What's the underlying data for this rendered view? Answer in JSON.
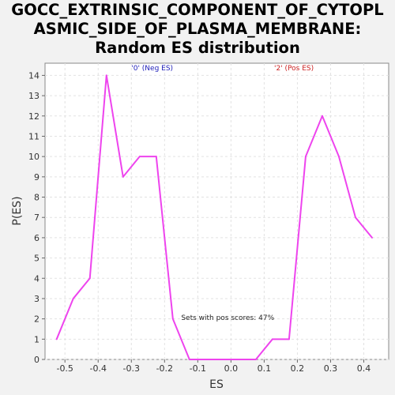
{
  "chart_data": {
    "type": "line",
    "title_lines": [
      "GOCC_EXTRINSIC_COMPONENT_OF_CYTOPL",
      "ASMIC_SIDE_OF_PLASMA_MEMBRANE:",
      "Random ES distribution"
    ],
    "xlabel": "ES",
    "ylabel": "P(ES)",
    "xlim": [
      -0.56,
      0.475
    ],
    "ylim": [
      0,
      14.6
    ],
    "x_ticks": [
      -0.5,
      -0.4,
      -0.3,
      -0.2,
      -0.1,
      0.0,
      0.1,
      0.2,
      0.3,
      0.4
    ],
    "x_tick_labels": [
      "-0.5",
      "-0.4",
      "-0.3",
      "-0.2",
      "-0.1",
      "0.0",
      "0.1",
      "0.2",
      "0.3",
      "0.4"
    ],
    "y_ticks": [
      0,
      1,
      2,
      3,
      4,
      5,
      6,
      7,
      8,
      9,
      10,
      11,
      12,
      13,
      14
    ],
    "y_tick_labels": [
      "0",
      "1",
      "2",
      "3",
      "4",
      "5",
      "6",
      "7",
      "8",
      "9",
      "10",
      "11",
      "12",
      "13",
      "14"
    ],
    "grid": true,
    "series": [
      {
        "color": "#ee44ee",
        "x": [
          -0.525,
          -0.475,
          -0.425,
          -0.375,
          -0.325,
          -0.275,
          -0.225,
          -0.175,
          -0.125,
          -0.075,
          -0.025,
          0.025,
          0.075,
          0.125,
          0.175,
          0.225,
          0.275,
          0.325,
          0.375,
          0.425
        ],
        "y": [
          1,
          3,
          4,
          14,
          9,
          10,
          10,
          2,
          0,
          0,
          0,
          0,
          0,
          1,
          1,
          10,
          12,
          10,
          7,
          6
        ]
      }
    ],
    "annotations": [
      {
        "text": "'0' (Neg ES)",
        "color": "#2222bb",
        "x": -0.3,
        "y": 14.25
      },
      {
        "text": "'2' (Pos ES)",
        "color": "#cc2222",
        "x": 0.13,
        "y": 14.25
      },
      {
        "text": "Sets with pos scores: 47%",
        "color": "#222222",
        "x": -0.15,
        "y": 1.95
      }
    ]
  }
}
